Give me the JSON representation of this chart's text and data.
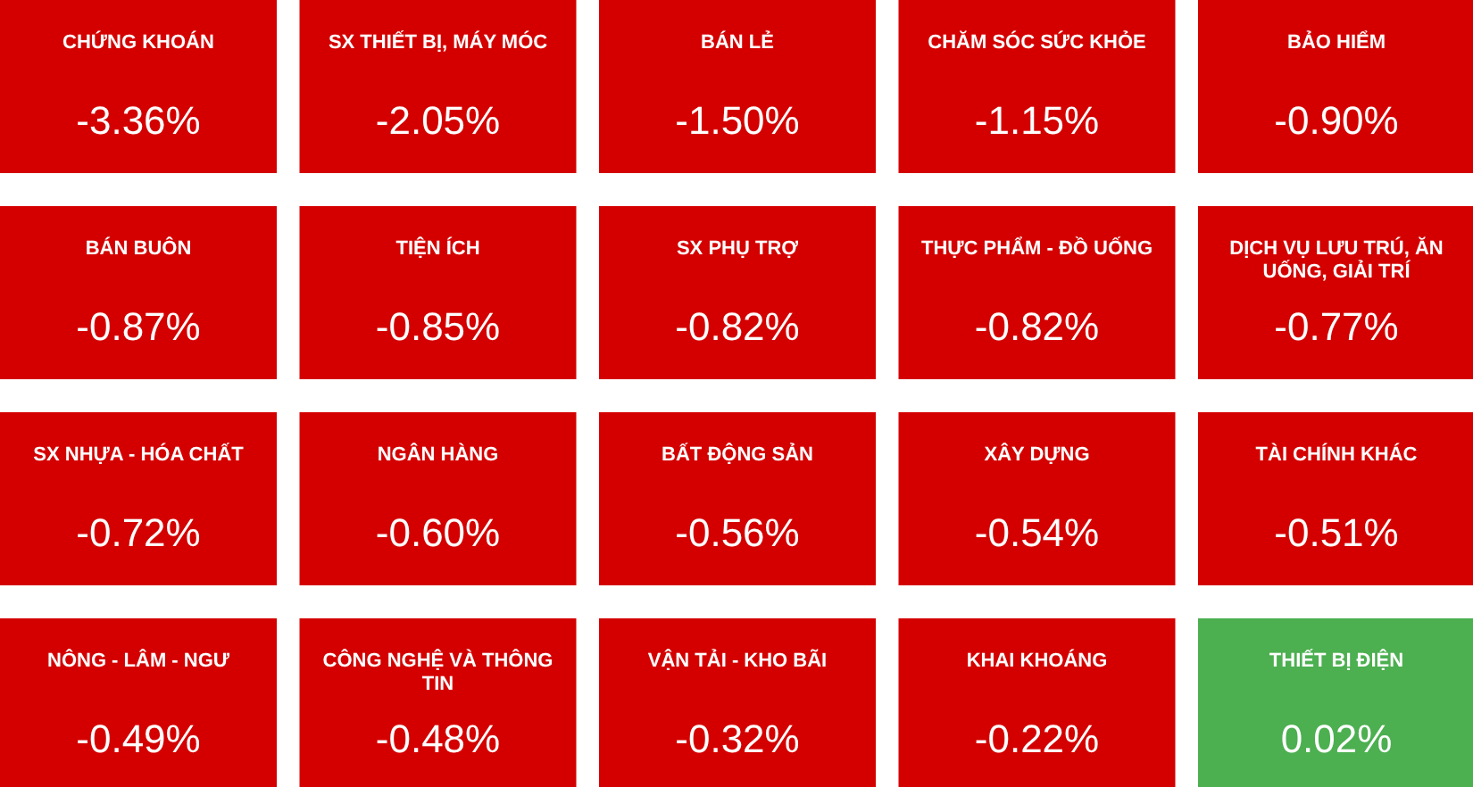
{
  "chart_data": {
    "type": "other",
    "categories": [
      "CHỨNG KHOÁN",
      "SX THIẾT BỊ, MÁY MÓC",
      "BÁN LẺ",
      "CHĂM SÓC SỨC KHỎE",
      "BẢO HIỂM",
      "BÁN BUÔN",
      "TIỆN ÍCH",
      "SX PHỤ TRỢ",
      "THỰC PHẨM - ĐỒ UỐNG",
      "DỊCH VỤ LƯU TRÚ, ĂN UỐNG, GIẢI TRÍ",
      "SX NHỰA - HÓA CHẤT",
      "NGÂN HÀNG",
      "BẤT ĐỘNG SẢN",
      "XÂY DỰNG",
      "TÀI CHÍNH KHÁC",
      "NÔNG - LÂM - NGƯ",
      "CÔNG NGHỆ VÀ THÔNG TIN",
      "VẬN TẢI - KHO BÃI",
      "KHAI KHOÁNG",
      "THIẾT BỊ ĐIỆN"
    ],
    "values": [
      -3.36,
      -2.05,
      -1.5,
      -1.15,
      -0.9,
      -0.87,
      -0.85,
      -0.82,
      -0.82,
      -0.77,
      -0.72,
      -0.6,
      -0.56,
      -0.54,
      -0.51,
      -0.49,
      -0.48,
      -0.32,
      -0.22,
      0.02
    ],
    "value_labels": [
      "-3.36%",
      "-2.05%",
      "-1.50%",
      "-1.15%",
      "-0.90%",
      "-0.87%",
      "-0.85%",
      "-0.82%",
      "-0.82%",
      "-0.77%",
      "-0.72%",
      "-0.60%",
      "-0.56%",
      "-0.54%",
      "-0.51%",
      "-0.49%",
      "-0.48%",
      "-0.32%",
      "-0.22%",
      "0.02%"
    ],
    "colors": [
      "#d40000",
      "#d40000",
      "#d40000",
      "#d40000",
      "#d40000",
      "#d40000",
      "#d40000",
      "#d40000",
      "#d40000",
      "#d40000",
      "#d40000",
      "#d40000",
      "#d40000",
      "#d40000",
      "#d40000",
      "#d40000",
      "#d40000",
      "#d40000",
      "#d40000",
      "#4caf50"
    ]
  }
}
